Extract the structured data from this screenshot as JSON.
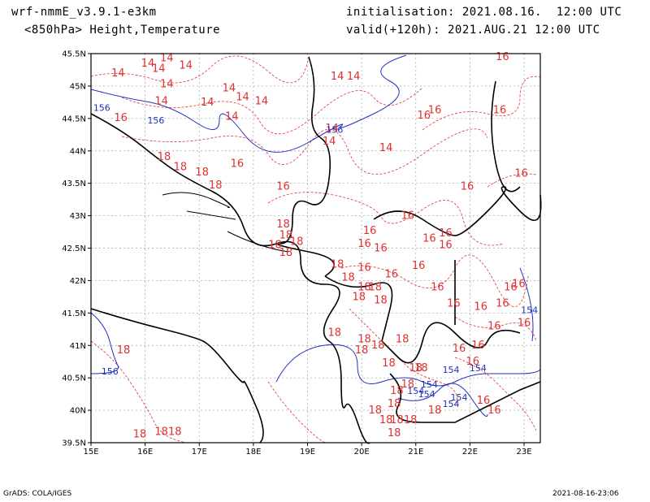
{
  "header": {
    "model": "wrf-nmmE_v3.9.1-e3km",
    "field": "<850hPa> Height,Temperature",
    "init": "initialisation: 2021.08.16.  12:00 UTC",
    "valid": "valid(+120h): 2021.AUG.21 12:00 UTC"
  },
  "footer": {
    "credit": "GrADS: COLA/IGES",
    "timestamp": "2021-08-16-23:06"
  },
  "map": {
    "lon_range": [
      15,
      23.3
    ],
    "lat_range": [
      39.5,
      45.5
    ],
    "lat_ticks": [
      "45.5N",
      "45N",
      "44.5N",
      "44N",
      "43.5N",
      "43N",
      "42.5N",
      "42N",
      "41.5N",
      "41N",
      "40.5N",
      "40N",
      "39.5N"
    ],
    "lon_ticks": [
      "15E",
      "16E",
      "17E",
      "18E",
      "19E",
      "20E",
      "21E",
      "22E",
      "23E"
    ],
    "colors": {
      "coast": "#000000",
      "temperature": "#e03030",
      "height": "#2030c0",
      "grid": "#a0a0a0"
    },
    "temperature_labels": [
      {
        "text": "14",
        "lon": 15.5,
        "lat": 45.15
      },
      {
        "text": "14",
        "lon": 16.05,
        "lat": 45.3
      },
      {
        "text": "14",
        "lon": 16.4,
        "lat": 45.38
      },
      {
        "text": "14",
        "lon": 16.25,
        "lat": 45.22
      },
      {
        "text": "14",
        "lon": 16.75,
        "lat": 45.27
      },
      {
        "text": "14",
        "lon": 16.4,
        "lat": 44.98
      },
      {
        "text": "14",
        "lon": 16.3,
        "lat": 44.72
      },
      {
        "text": "14",
        "lon": 17.15,
        "lat": 44.7
      },
      {
        "text": "14",
        "lon": 17.55,
        "lat": 44.92
      },
      {
        "text": "14",
        "lon": 17.8,
        "lat": 44.78
      },
      {
        "text": "14",
        "lon": 18.15,
        "lat": 44.72
      },
      {
        "text": "14",
        "lon": 17.6,
        "lat": 44.48
      },
      {
        "text": "14",
        "lon": 19.4,
        "lat": 44.1
      },
      {
        "text": "14",
        "lon": 19.45,
        "lat": 44.3
      },
      {
        "text": "14",
        "lon": 19.85,
        "lat": 45.1
      },
      {
        "text": "14",
        "lon": 20.45,
        "lat": 44.0
      },
      {
        "text": "14",
        "lon": 19.55,
        "lat": 45.1
      },
      {
        "text": "16",
        "lon": 15.55,
        "lat": 44.46
      },
      {
        "text": "16",
        "lon": 17.7,
        "lat": 43.75
      },
      {
        "text": "16",
        "lon": 18.55,
        "lat": 43.4
      },
      {
        "text": "16",
        "lon": 21.15,
        "lat": 44.5
      },
      {
        "text": "16",
        "lon": 21.35,
        "lat": 44.58
      },
      {
        "text": "16",
        "lon": 22.6,
        "lat": 45.4
      },
      {
        "text": "16",
        "lon": 22.55,
        "lat": 44.58
      },
      {
        "text": "16",
        "lon": 21.95,
        "lat": 43.4
      },
      {
        "text": "16",
        "lon": 22.95,
        "lat": 43.6
      },
      {
        "text": "16",
        "lon": 20.85,
        "lat": 42.95
      },
      {
        "text": "16",
        "lon": 21.25,
        "lat": 42.6
      },
      {
        "text": "16",
        "lon": 21.55,
        "lat": 42.68
      },
      {
        "text": "16",
        "lon": 20.15,
        "lat": 42.72
      },
      {
        "text": "16",
        "lon": 20.05,
        "lat": 42.52
      },
      {
        "text": "16",
        "lon": 20.35,
        "lat": 42.45
      },
      {
        "text": "16",
        "lon": 20.05,
        "lat": 42.15
      },
      {
        "text": "16",
        "lon": 20.55,
        "lat": 42.05
      },
      {
        "text": "16",
        "lon": 21.05,
        "lat": 42.18
      },
      {
        "text": "16",
        "lon": 21.4,
        "lat": 41.85
      },
      {
        "text": "16",
        "lon": 21.7,
        "lat": 41.6
      },
      {
        "text": "16",
        "lon": 22.2,
        "lat": 41.55
      },
      {
        "text": "16",
        "lon": 22.6,
        "lat": 41.6
      },
      {
        "text": "16",
        "lon": 22.9,
        "lat": 41.9
      },
      {
        "text": "16",
        "lon": 22.75,
        "lat": 41.85
      },
      {
        "text": "16",
        "lon": 22.45,
        "lat": 41.25
      },
      {
        "text": "16",
        "lon": 22.15,
        "lat": 40.95
      },
      {
        "text": "16",
        "lon": 21.8,
        "lat": 40.9
      },
      {
        "text": "16",
        "lon": 22.05,
        "lat": 40.7
      },
      {
        "text": "16",
        "lon": 22.25,
        "lat": 40.1
      },
      {
        "text": "16",
        "lon": 22.45,
        "lat": 39.95
      },
      {
        "text": "16",
        "lon": 23.0,
        "lat": 41.3
      },
      {
        "text": "16",
        "lon": 21.55,
        "lat": 42.5
      },
      {
        "text": "18",
        "lon": 16.35,
        "lat": 43.86
      },
      {
        "text": "18",
        "lon": 16.65,
        "lat": 43.7
      },
      {
        "text": "18",
        "lon": 17.05,
        "lat": 43.62
      },
      {
        "text": "18",
        "lon": 17.3,
        "lat": 43.42
      },
      {
        "text": "18",
        "lon": 18.55,
        "lat": 42.82
      },
      {
        "text": "18",
        "lon": 18.6,
        "lat": 42.65
      },
      {
        "text": "18",
        "lon": 18.4,
        "lat": 42.5
      },
      {
        "text": "18",
        "lon": 18.6,
        "lat": 42.38
      },
      {
        "text": "18",
        "lon": 18.8,
        "lat": 42.55
      },
      {
        "text": "18",
        "lon": 19.55,
        "lat": 42.2
      },
      {
        "text": "18",
        "lon": 19.75,
        "lat": 42.0
      },
      {
        "text": "18",
        "lon": 20.05,
        "lat": 41.85
      },
      {
        "text": "18",
        "lon": 19.95,
        "lat": 41.7
      },
      {
        "text": "18",
        "lon": 20.35,
        "lat": 41.65
      },
      {
        "text": "18",
        "lon": 20.25,
        "lat": 41.85
      },
      {
        "text": "18",
        "lon": 19.5,
        "lat": 41.15
      },
      {
        "text": "18",
        "lon": 20.05,
        "lat": 41.05
      },
      {
        "text": "18",
        "lon": 20.0,
        "lat": 40.88
      },
      {
        "text": "18",
        "lon": 20.3,
        "lat": 40.95
      },
      {
        "text": "18",
        "lon": 20.5,
        "lat": 40.68
      },
      {
        "text": "18",
        "lon": 20.75,
        "lat": 41.05
      },
      {
        "text": "18",
        "lon": 21.0,
        "lat": 40.6
      },
      {
        "text": "18",
        "lon": 21.1,
        "lat": 40.6
      },
      {
        "text": "18",
        "lon": 20.65,
        "lat": 40.25
      },
      {
        "text": "18",
        "lon": 20.6,
        "lat": 40.05
      },
      {
        "text": "18",
        "lon": 20.25,
        "lat": 39.95
      },
      {
        "text": "18",
        "lon": 20.45,
        "lat": 39.8
      },
      {
        "text": "18",
        "lon": 20.65,
        "lat": 39.8
      },
      {
        "text": "18",
        "lon": 20.9,
        "lat": 39.8
      },
      {
        "text": "18",
        "lon": 20.6,
        "lat": 39.6
      },
      {
        "text": "18",
        "lon": 21.35,
        "lat": 39.95
      },
      {
        "text": "18",
        "lon": 15.6,
        "lat": 40.88
      },
      {
        "text": "18",
        "lon": 15.9,
        "lat": 39.58
      },
      {
        "text": "18",
        "lon": 16.3,
        "lat": 39.62
      },
      {
        "text": "18",
        "lon": 16.55,
        "lat": 39.62
      },
      {
        "text": "18",
        "lon": 20.85,
        "lat": 40.35
      }
    ],
    "height_labels": [
      {
        "text": "156",
        "lon": 15.2,
        "lat": 44.62
      },
      {
        "text": "156",
        "lon": 16.2,
        "lat": 44.42
      },
      {
        "text": "156",
        "lon": 19.5,
        "lat": 44.28
      },
      {
        "text": "156",
        "lon": 15.35,
        "lat": 40.55
      },
      {
        "text": "154",
        "lon": 21.65,
        "lat": 40.58
      },
      {
        "text": "154",
        "lon": 21.0,
        "lat": 40.25
      },
      {
        "text": "154",
        "lon": 21.25,
        "lat": 40.35
      },
      {
        "text": "154",
        "lon": 21.2,
        "lat": 40.2
      },
      {
        "text": "154",
        "lon": 21.8,
        "lat": 40.15
      },
      {
        "text": "154",
        "lon": 21.65,
        "lat": 40.05
      },
      {
        "text": "154",
        "lon": 22.15,
        "lat": 40.6
      },
      {
        "text": "154",
        "lon": 23.1,
        "lat": 41.5
      }
    ]
  }
}
